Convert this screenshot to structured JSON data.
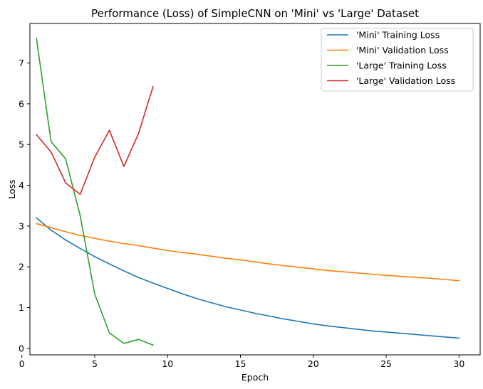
{
  "chart_data": {
    "type": "line",
    "title": "Performance (Loss) of SimpleCNN on 'Mini' vs 'Large' Dataset",
    "xlabel": "Epoch",
    "ylabel": "Loss",
    "xlim": [
      0.55,
      31.45
    ],
    "ylim": [
      -0.16,
      7.97
    ],
    "xticks": [
      0,
      5,
      10,
      15,
      20,
      25,
      30
    ],
    "yticks": [
      0,
      1,
      2,
      3,
      4,
      5,
      6,
      7
    ],
    "grid": false,
    "legend_position": "top-right",
    "series": [
      {
        "name": "'Mini' Training Loss",
        "color": "#1f77b4",
        "x": [
          1,
          2,
          3,
          4,
          5,
          6,
          7,
          8,
          9,
          10,
          11,
          12,
          13,
          14,
          15,
          16,
          17,
          18,
          19,
          20,
          21,
          22,
          23,
          24,
          25,
          26,
          27,
          28,
          29,
          30
        ],
        "values": [
          3.2,
          2.9,
          2.66,
          2.45,
          2.25,
          2.07,
          1.9,
          1.74,
          1.6,
          1.47,
          1.34,
          1.22,
          1.12,
          1.02,
          0.94,
          0.86,
          0.79,
          0.72,
          0.66,
          0.6,
          0.55,
          0.51,
          0.47,
          0.43,
          0.4,
          0.37,
          0.34,
          0.31,
          0.28,
          0.25
        ]
      },
      {
        "name": "'Mini' Validation Loss",
        "color": "#ff7f0e",
        "x": [
          1,
          2,
          3,
          4,
          5,
          6,
          7,
          8,
          9,
          10,
          11,
          12,
          13,
          14,
          15,
          16,
          17,
          18,
          19,
          20,
          21,
          22,
          23,
          24,
          25,
          26,
          27,
          28,
          29,
          30
        ],
        "values": [
          3.06,
          2.96,
          2.86,
          2.77,
          2.7,
          2.63,
          2.57,
          2.52,
          2.46,
          2.4,
          2.35,
          2.31,
          2.26,
          2.21,
          2.17,
          2.12,
          2.07,
          2.03,
          1.99,
          1.95,
          1.91,
          1.88,
          1.85,
          1.82,
          1.79,
          1.77,
          1.74,
          1.72,
          1.69,
          1.66
        ]
      },
      {
        "name": "'Large' Training Loss",
        "color": "#2ca02c",
        "x": [
          1,
          2,
          3,
          4,
          5,
          6,
          7,
          8,
          9
        ],
        "values": [
          7.6,
          5.07,
          4.65,
          3.25,
          1.33,
          0.38,
          0.12,
          0.22,
          0.08
        ]
      },
      {
        "name": "'Large' Validation Loss",
        "color": "#d62728",
        "x": [
          1,
          2,
          3,
          4,
          5,
          6,
          7,
          8,
          9
        ],
        "values": [
          5.24,
          4.82,
          4.06,
          3.78,
          4.69,
          5.35,
          4.46,
          5.27,
          6.42
        ]
      }
    ]
  }
}
